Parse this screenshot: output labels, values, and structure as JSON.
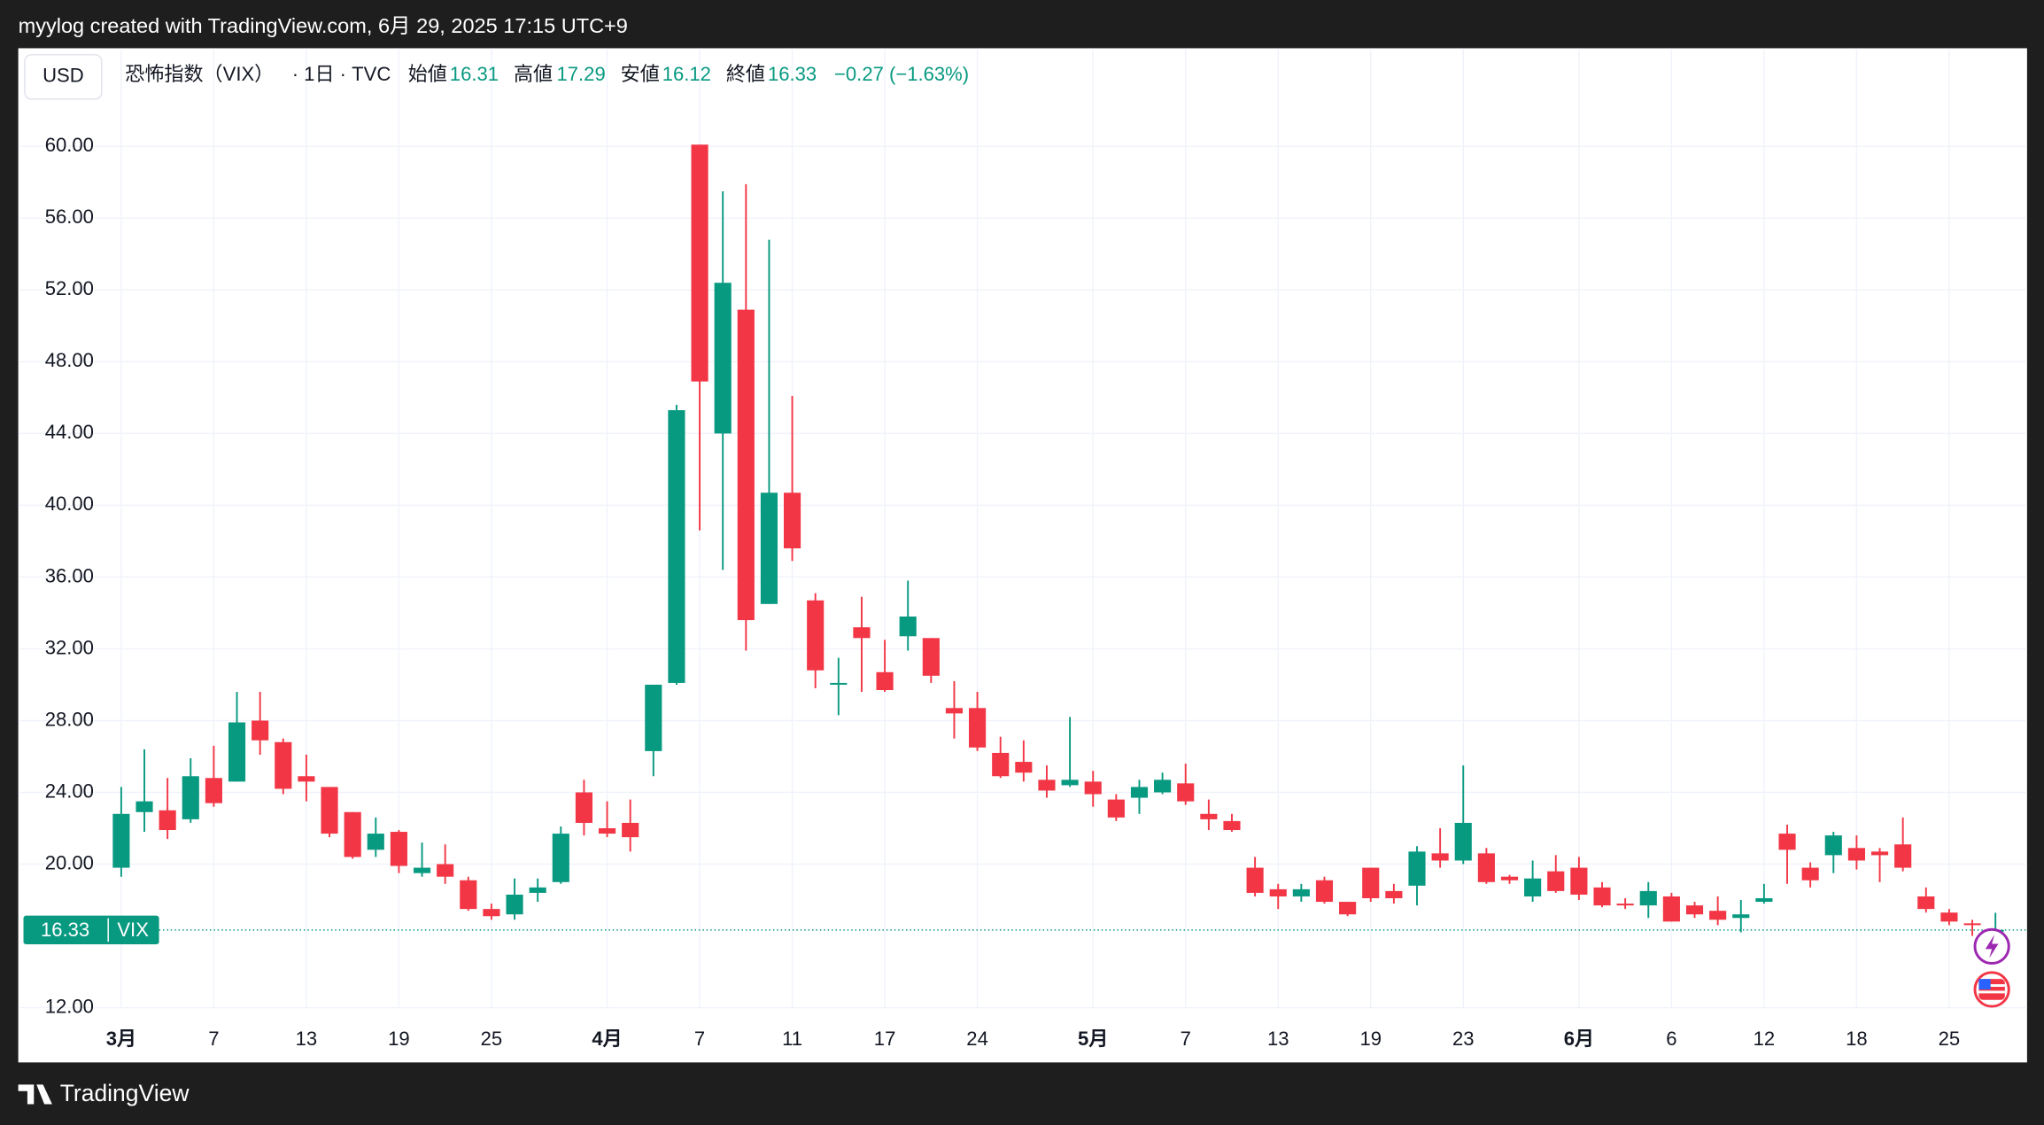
{
  "header": {
    "caption": "myylog created with TradingView.com, 6月 29, 2025 17:15 UTC+9",
    "currency": "USD",
    "brand": "TradingView"
  },
  "chart_data": {
    "type": "candlestick",
    "symbol": "恐怖指数（VIX）",
    "interval": "· 1日 · TVC",
    "open_label": "始値",
    "high_label": "高値",
    "low_label": "安値",
    "close_label": "終値",
    "change": "−0.27 (−1.63%)",
    "price_tag_name": "VIX",
    "up_color": "#089981",
    "down_color": "#f23645",
    "grid": true,
    "categories": [
      "3月",
      null,
      null,
      null,
      "7",
      null,
      null,
      null,
      "13",
      null,
      null,
      null,
      "19",
      null,
      null,
      null,
      "25",
      null,
      null,
      null,
      null,
      "4月",
      null,
      null,
      null,
      "7",
      null,
      null,
      null,
      "11",
      null,
      null,
      null,
      "17",
      null,
      null,
      null,
      "24",
      null,
      null,
      null,
      null,
      "5月",
      null,
      null,
      null,
      "7",
      null,
      null,
      null,
      "13",
      null,
      null,
      null,
      "19",
      null,
      null,
      null,
      "23",
      null,
      null,
      null,
      null,
      "6月",
      null,
      null,
      null,
      "6",
      null,
      null,
      null,
      "12",
      null,
      null,
      null,
      "18",
      null,
      null,
      null,
      "25",
      null,
      null
    ],
    "open": [
      19.8,
      22.9,
      23.0,
      22.5,
      24.8,
      24.6,
      28.0,
      26.8,
      24.9,
      24.3,
      22.9,
      20.8,
      21.8,
      19.5,
      20.0,
      19.1,
      17.5,
      17.2,
      18.4,
      19.0,
      24.0,
      22.0,
      22.3,
      26.3,
      30.1,
      60.1,
      44.0,
      50.9,
      34.5,
      40.7,
      34.7,
      30.0,
      33.2,
      30.7,
      32.7,
      32.6,
      28.7,
      28.7,
      26.2,
      25.7,
      24.7,
      24.4,
      24.6,
      23.6,
      23.7,
      24.0,
      24.5,
      22.8,
      22.4,
      19.8,
      18.6,
      18.2,
      19.1,
      17.9,
      19.8,
      18.5,
      18.8,
      20.6,
      20.2,
      20.6,
      19.3,
      18.2,
      19.6,
      19.8,
      18.7,
      17.8,
      17.7,
      18.2,
      17.7,
      17.4,
      17.0,
      17.9,
      21.7,
      19.8,
      20.5,
      20.9,
      20.7,
      21.1,
      18.2,
      17.3,
      16.7,
      16.31
    ],
    "high": [
      24.3,
      26.4,
      24.8,
      25.9,
      26.6,
      29.6,
      29.6,
      27.0,
      26.1,
      24.3,
      22.9,
      22.6,
      21.9,
      21.2,
      21.1,
      19.3,
      17.8,
      19.2,
      19.2,
      22.1,
      24.7,
      23.5,
      23.6,
      30.0,
      45.6,
      60.1,
      57.5,
      57.9,
      54.8,
      46.1,
      35.1,
      31.5,
      34.9,
      32.5,
      35.8,
      32.6,
      30.2,
      29.6,
      27.1,
      26.9,
      25.5,
      28.2,
      25.2,
      23.9,
      24.7,
      25.1,
      25.6,
      23.6,
      22.8,
      20.4,
      18.9,
      18.9,
      19.3,
      17.9,
      19.8,
      18.9,
      21.0,
      22.0,
      25.5,
      20.9,
      19.4,
      20.2,
      20.5,
      20.4,
      19.0,
      18.1,
      19.0,
      18.4,
      17.9,
      18.2,
      18.0,
      18.9,
      22.2,
      20.1,
      21.8,
      21.6,
      20.9,
      22.6,
      18.7,
      17.5,
      16.9,
      17.29
    ],
    "low": [
      19.3,
      21.8,
      21.4,
      22.3,
      23.2,
      24.6,
      26.1,
      23.9,
      23.5,
      21.5,
      20.3,
      20.4,
      19.5,
      19.3,
      18.9,
      17.4,
      16.9,
      16.9,
      17.9,
      18.9,
      21.6,
      21.5,
      20.7,
      24.9,
      30.0,
      38.6,
      36.4,
      31.9,
      34.5,
      36.9,
      29.8,
      28.3,
      29.6,
      29.6,
      31.9,
      30.1,
      27.0,
      26.3,
      24.8,
      24.6,
      23.7,
      24.3,
      23.2,
      22.4,
      22.8,
      23.9,
      23.3,
      21.9,
      21.8,
      18.2,
      17.5,
      17.9,
      17.8,
      17.1,
      17.9,
      17.8,
      17.7,
      19.8,
      20.0,
      18.9,
      18.9,
      17.9,
      18.4,
      18.0,
      17.6,
      17.5,
      17.0,
      16.8,
      17.0,
      16.6,
      16.2,
      17.8,
      18.9,
      18.7,
      19.5,
      19.7,
      19.0,
      19.6,
      17.3,
      16.6,
      16.0,
      16.12
    ],
    "close": [
      22.8,
      23.5,
      21.9,
      24.9,
      23.4,
      27.9,
      26.9,
      24.2,
      24.6,
      21.7,
      20.4,
      21.7,
      19.9,
      19.8,
      19.3,
      17.5,
      17.1,
      18.3,
      18.7,
      21.7,
      22.3,
      21.7,
      21.5,
      30.0,
      45.3,
      46.9,
      52.4,
      33.6,
      40.7,
      37.6,
      30.8,
      30.1,
      32.6,
      29.7,
      33.8,
      30.5,
      28.4,
      26.5,
      24.9,
      25.1,
      24.1,
      24.7,
      23.9,
      22.6,
      24.3,
      24.7,
      23.5,
      22.5,
      21.9,
      18.4,
      18.2,
      18.6,
      17.9,
      17.2,
      18.1,
      18.1,
      20.7,
      20.2,
      22.3,
      19.0,
      19.1,
      19.2,
      18.5,
      18.3,
      17.7,
      17.7,
      18.5,
      16.8,
      17.2,
      16.9,
      17.2,
      18.1,
      20.8,
      19.1,
      21.6,
      20.2,
      20.5,
      19.8,
      17.5,
      16.8,
      16.6,
      16.33
    ],
    "ylim": [
      12,
      65.4
    ],
    "yticks": [
      {
        "value": 12,
        "label": "12.00"
      },
      {
        "value": 20,
        "label": "20.00"
      },
      {
        "value": 24,
        "label": "24.00"
      },
      {
        "value": 28,
        "label": "28.00"
      },
      {
        "value": 32,
        "label": "32.00"
      },
      {
        "value": 36,
        "label": "36.00"
      },
      {
        "value": 40,
        "label": "40.00"
      },
      {
        "value": 44,
        "label": "44.00"
      },
      {
        "value": 48,
        "label": "48.00"
      },
      {
        "value": 52,
        "label": "52.00"
      },
      {
        "value": 56,
        "label": "56.00"
      },
      {
        "value": 60,
        "label": "60.00"
      }
    ]
  }
}
